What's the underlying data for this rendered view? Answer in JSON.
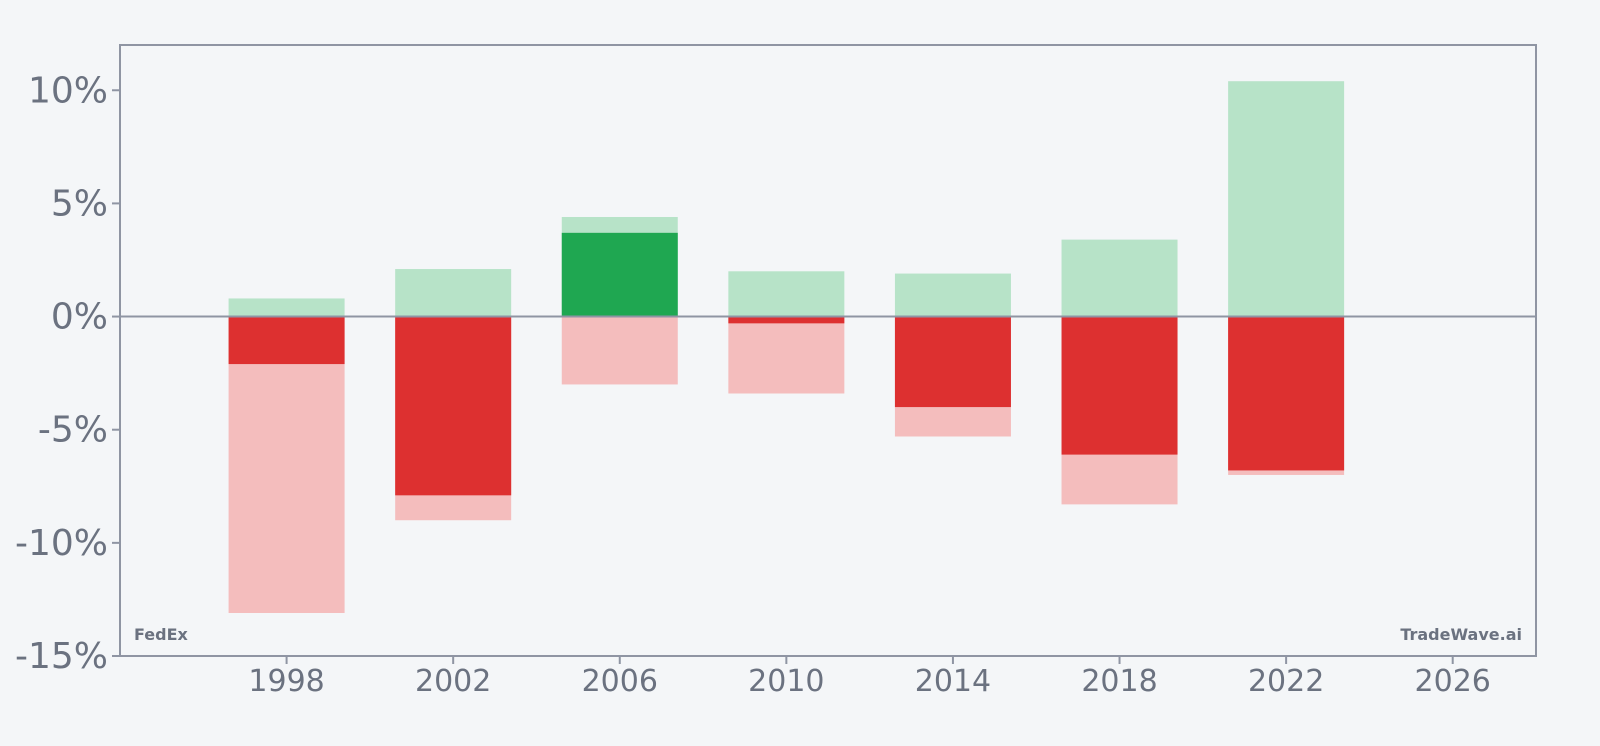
{
  "chart_data": {
    "type": "bar",
    "x": [
      1998,
      2002,
      2006,
      2010,
      2014,
      2018,
      2022
    ],
    "series": [
      {
        "role": "range_high",
        "color": "#b7e3c8",
        "values": [
          0.8,
          2.1,
          4.4,
          2.0,
          1.9,
          3.4,
          10.4
        ]
      },
      {
        "role": "range_low",
        "color": "#f4bdbd",
        "values": [
          -13.1,
          -9.0,
          -3.0,
          -3.4,
          -5.3,
          -8.3,
          -7.0
        ]
      },
      {
        "role": "net_change",
        "values": [
          -2.1,
          -7.9,
          3.7,
          -0.3,
          -4.0,
          -6.1,
          -6.8
        ]
      }
    ],
    "colors": {
      "positive": "#1fa751",
      "negative": "#dd3030",
      "axis": "#8f95a3",
      "text": "#6b7280",
      "background": "#f4f6f8"
    },
    "xlim": [
      1994,
      2028
    ],
    "ylim": [
      -15,
      12
    ],
    "x_ticks": [
      1998,
      2002,
      2006,
      2010,
      2014,
      2018,
      2022,
      2026
    ],
    "x_tick_labels": [
      "1998",
      "2002",
      "2006",
      "2010",
      "2014",
      "2018",
      "2022",
      "2026"
    ],
    "y_ticks": [
      -15,
      -10,
      -5,
      0,
      5,
      10
    ],
    "y_tick_labels": [
      "-15%",
      "-10%",
      "-5%",
      "0%",
      "5%",
      "10%"
    ],
    "grid": false,
    "title": "",
    "xlabel": "",
    "ylabel": ""
  },
  "watermark_left": "FedEx",
  "watermark_right": "TradeWave.ai"
}
